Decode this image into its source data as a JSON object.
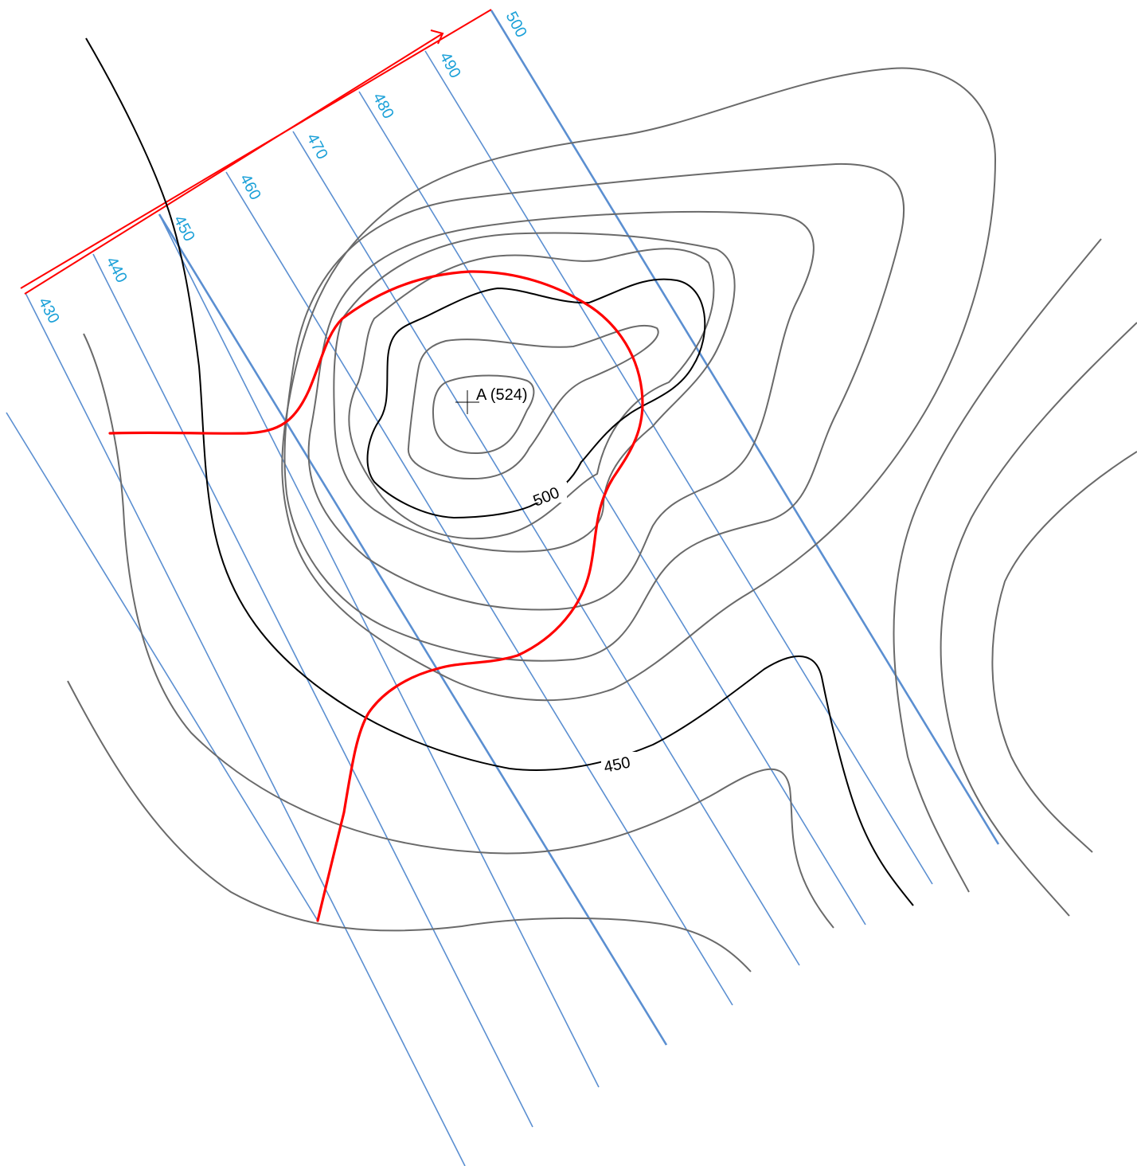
{
  "colors": {
    "contour": "#6a6a6a",
    "index_contour": "#000000",
    "plane_lines": "#5b8fd1",
    "plane_labels": "#1aa0d8",
    "outcrop": "#ff0000",
    "dip_arrow": "#ff0000"
  },
  "plane_labels": [
    "430",
    "440",
    "450",
    "460",
    "470",
    "480",
    "490",
    "500"
  ],
  "contour_labels": {
    "c500": "500",
    "c450": "450"
  },
  "point": {
    "label": "A (524)"
  }
}
